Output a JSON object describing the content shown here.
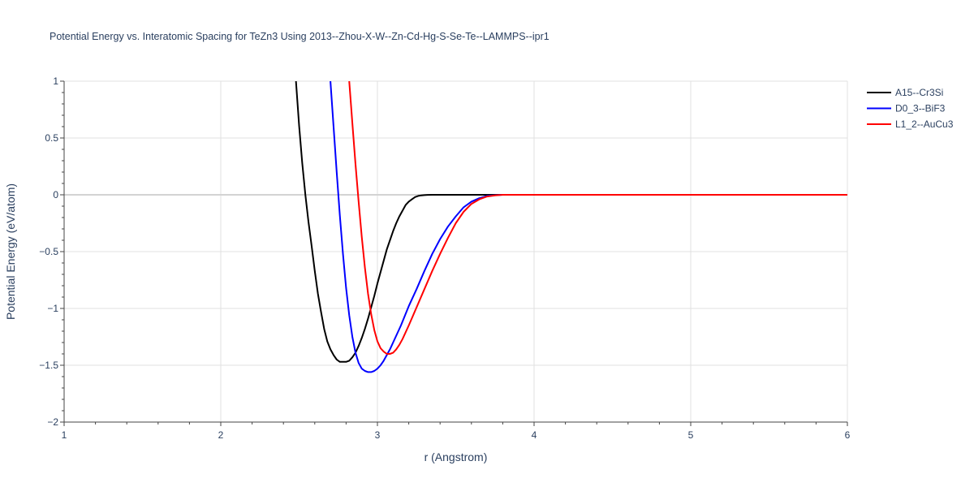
{
  "chart_data": {
    "type": "line",
    "title": "Potential Energy vs. Interatomic Spacing for TeZn3 Using 2013--Zhou-X-W--Zn-Cd-Hg-S-Se-Te--LAMMPS--ipr1",
    "xlabel": "r (Angstrom)",
    "ylabel": "Potential Energy (eV/atom)",
    "xlim": [
      1,
      6
    ],
    "ylim": [
      -2,
      1
    ],
    "x_ticks": [
      1,
      2,
      3,
      4,
      5,
      6
    ],
    "y_ticks": [
      1,
      0.5,
      0,
      -0.5,
      -1,
      -1.5,
      -2
    ],
    "y_tick_labels": [
      "1",
      "0.5",
      "0",
      "−0.5",
      "−1",
      "−1.5",
      "−2"
    ],
    "grid": true,
    "legend_position": "top-right",
    "series": [
      {
        "name": "A15--Cr3Si",
        "color": "#000000",
        "x": [
          2.48,
          2.5,
          2.52,
          2.54,
          2.56,
          2.58,
          2.6,
          2.62,
          2.64,
          2.66,
          2.68,
          2.7,
          2.72,
          2.74,
          2.76,
          2.78,
          2.8,
          2.82,
          2.84,
          2.86,
          2.88,
          2.9,
          2.92,
          2.94,
          2.96,
          2.98,
          3.0,
          3.02,
          3.04,
          3.06,
          3.08,
          3.1,
          3.12,
          3.14,
          3.16,
          3.18,
          3.2,
          3.22,
          3.24,
          3.26,
          3.28,
          3.3,
          3.32,
          3.35,
          3.4,
          3.5,
          3.6,
          3.8,
          4.0,
          5.0,
          6.0
        ],
        "y": [
          1.0,
          0.61,
          0.28,
          0.0,
          -0.24,
          -0.45,
          -0.67,
          -0.87,
          -1.03,
          -1.18,
          -1.29,
          -1.36,
          -1.41,
          -1.45,
          -1.47,
          -1.47,
          -1.47,
          -1.46,
          -1.43,
          -1.39,
          -1.33,
          -1.26,
          -1.18,
          -1.09,
          -0.99,
          -0.89,
          -0.78,
          -0.68,
          -0.58,
          -0.48,
          -0.4,
          -0.32,
          -0.25,
          -0.19,
          -0.14,
          -0.09,
          -0.06,
          -0.04,
          -0.02,
          -0.01,
          -0.005,
          -0.003,
          -0.001,
          0.0,
          0.0,
          0.0,
          0.0,
          0.0,
          0.0,
          0.0,
          0.0
        ]
      },
      {
        "name": "D0_3--BiF3",
        "color": "#0000ff",
        "x": [
          2.7,
          2.72,
          2.74,
          2.76,
          2.78,
          2.8,
          2.82,
          2.84,
          2.86,
          2.88,
          2.9,
          2.92,
          2.94,
          2.96,
          2.98,
          3.0,
          3.02,
          3.04,
          3.06,
          3.08,
          3.1,
          3.15,
          3.2,
          3.25,
          3.3,
          3.35,
          3.4,
          3.45,
          3.5,
          3.55,
          3.6,
          3.65,
          3.7,
          3.75,
          3.8,
          4.0,
          5.0,
          6.0
        ],
        "y": [
          1.0,
          0.6,
          0.2,
          -0.18,
          -0.52,
          -0.82,
          -1.06,
          -1.25,
          -1.39,
          -1.48,
          -1.53,
          -1.55,
          -1.56,
          -1.56,
          -1.55,
          -1.53,
          -1.5,
          -1.46,
          -1.41,
          -1.36,
          -1.3,
          -1.15,
          -0.98,
          -0.83,
          -0.67,
          -0.52,
          -0.39,
          -0.28,
          -0.19,
          -0.11,
          -0.06,
          -0.03,
          -0.01,
          -0.004,
          0.0,
          0.0,
          0.0,
          0.0
        ]
      },
      {
        "name": "L1_2--AuCu3",
        "color": "#ff0000",
        "x": [
          2.82,
          2.84,
          2.86,
          2.88,
          2.9,
          2.92,
          2.94,
          2.96,
          2.98,
          3.0,
          3.02,
          3.04,
          3.06,
          3.08,
          3.1,
          3.12,
          3.14,
          3.16,
          3.2,
          3.25,
          3.3,
          3.35,
          3.4,
          3.45,
          3.5,
          3.55,
          3.6,
          3.65,
          3.7,
          3.75,
          3.8,
          4.0,
          5.0,
          6.0
        ],
        "y": [
          1.0,
          0.63,
          0.27,
          -0.06,
          -0.37,
          -0.64,
          -0.87,
          -1.05,
          -1.19,
          -1.29,
          -1.35,
          -1.38,
          -1.4,
          -1.4,
          -1.39,
          -1.36,
          -1.32,
          -1.27,
          -1.15,
          -0.99,
          -0.83,
          -0.67,
          -0.52,
          -0.38,
          -0.25,
          -0.15,
          -0.08,
          -0.04,
          -0.015,
          -0.005,
          0.0,
          0.0,
          0.0,
          0.0
        ]
      }
    ]
  }
}
